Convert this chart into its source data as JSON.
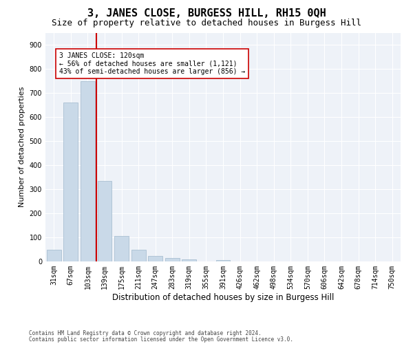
{
  "title": "3, JANES CLOSE, BURGESS HILL, RH15 0QH",
  "subtitle": "Size of property relative to detached houses in Burgess Hill",
  "xlabel": "Distribution of detached houses by size in Burgess Hill",
  "ylabel": "Number of detached properties",
  "footnote1": "Contains HM Land Registry data © Crown copyright and database right 2024.",
  "footnote2": "Contains public sector information licensed under the Open Government Licence v3.0.",
  "bar_labels": [
    "31sqm",
    "67sqm",
    "103sqm",
    "139sqm",
    "175sqm",
    "211sqm",
    "247sqm",
    "283sqm",
    "319sqm",
    "355sqm",
    "391sqm",
    "426sqm",
    "462sqm",
    "498sqm",
    "534sqm",
    "570sqm",
    "606sqm",
    "642sqm",
    "678sqm",
    "714sqm",
    "750sqm"
  ],
  "bar_values": [
    48,
    660,
    748,
    335,
    105,
    48,
    22,
    14,
    10,
    0,
    5,
    0,
    0,
    0,
    0,
    0,
    0,
    0,
    0,
    0,
    0
  ],
  "bar_color": "#c9d9e8",
  "bar_edge_color": "#a0b8cc",
  "vline_x": 2.5,
  "vline_color": "#cc0000",
  "annotation_text": "3 JANES CLOSE: 120sqm\n← 56% of detached houses are smaller (1,121)\n43% of semi-detached houses are larger (856) →",
  "annotation_box_color": "white",
  "annotation_box_edge": "#cc0000",
  "annotation_fontsize": 7.0,
  "ylim": [
    0,
    950
  ],
  "yticks": [
    0,
    100,
    200,
    300,
    400,
    500,
    600,
    700,
    800,
    900
  ],
  "background_color": "#eef2f8",
  "grid_color": "white",
  "title_fontsize": 11,
  "subtitle_fontsize": 9,
  "xlabel_fontsize": 8.5,
  "ylabel_fontsize": 8,
  "tick_labelsize": 7,
  "footnote_fontsize": 5.5
}
